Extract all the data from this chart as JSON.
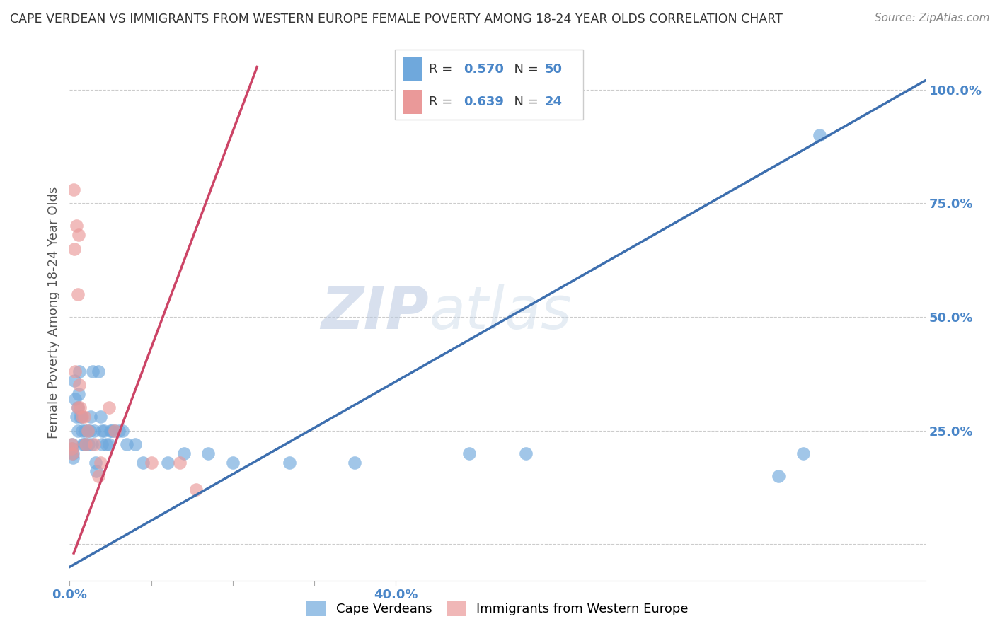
{
  "title": "CAPE VERDEAN VS IMMIGRANTS FROM WESTERN EUROPE FEMALE POVERTY AMONG 18-24 YEAR OLDS CORRELATION CHART",
  "source": "Source: ZipAtlas.com",
  "ylabel": "Female Poverty Among 18-24 Year Olds",
  "xlim": [
    0.0,
    1.05
  ],
  "ylim": [
    -0.08,
    1.1
  ],
  "yticks": [
    0.0,
    0.25,
    0.5,
    0.75,
    1.0
  ],
  "ytick_labels": [
    "",
    "25.0%",
    "50.0%",
    "75.0%",
    "100.0%"
  ],
  "xticks": [
    0.0,
    0.1,
    0.2,
    0.3,
    0.4
  ],
  "xtick_labels": [
    "0.0%",
    "",
    "",
    "",
    "40.0%"
  ],
  "watermark_part1": "ZIP",
  "watermark_part2": "atlas",
  "blue_color": "#6fa8dc",
  "pink_color": "#ea9999",
  "blue_line_color": "#3d6faf",
  "pink_line_color": "#cc4466",
  "blue_line": [
    [
      0.0,
      -0.05
    ],
    [
      1.05,
      1.02
    ]
  ],
  "pink_line": [
    [
      0.005,
      -0.02
    ],
    [
      0.23,
      1.05
    ]
  ],
  "blue_scatter": [
    [
      0.003,
      0.22
    ],
    [
      0.003,
      0.21
    ],
    [
      0.004,
      0.2
    ],
    [
      0.004,
      0.19
    ],
    [
      0.006,
      0.36
    ],
    [
      0.007,
      0.32
    ],
    [
      0.008,
      0.28
    ],
    [
      0.01,
      0.3
    ],
    [
      0.01,
      0.25
    ],
    [
      0.011,
      0.33
    ],
    [
      0.012,
      0.38
    ],
    [
      0.013,
      0.28
    ],
    [
      0.014,
      0.28
    ],
    [
      0.015,
      0.25
    ],
    [
      0.016,
      0.22
    ],
    [
      0.018,
      0.22
    ],
    [
      0.019,
      0.25
    ],
    [
      0.02,
      0.22
    ],
    [
      0.022,
      0.25
    ],
    [
      0.023,
      0.22
    ],
    [
      0.025,
      0.25
    ],
    [
      0.026,
      0.28
    ],
    [
      0.027,
      0.22
    ],
    [
      0.028,
      0.38
    ],
    [
      0.03,
      0.25
    ],
    [
      0.032,
      0.18
    ],
    [
      0.033,
      0.16
    ],
    [
      0.035,
      0.38
    ],
    [
      0.038,
      0.28
    ],
    [
      0.04,
      0.25
    ],
    [
      0.04,
      0.22
    ],
    [
      0.042,
      0.25
    ],
    [
      0.045,
      0.22
    ],
    [
      0.048,
      0.22
    ],
    [
      0.05,
      0.25
    ],
    [
      0.052,
      0.25
    ],
    [
      0.055,
      0.25
    ],
    [
      0.06,
      0.25
    ],
    [
      0.065,
      0.25
    ],
    [
      0.07,
      0.22
    ],
    [
      0.08,
      0.22
    ],
    [
      0.09,
      0.18
    ],
    [
      0.12,
      0.18
    ],
    [
      0.14,
      0.2
    ],
    [
      0.17,
      0.2
    ],
    [
      0.2,
      0.18
    ],
    [
      0.27,
      0.18
    ],
    [
      0.35,
      0.18
    ],
    [
      0.49,
      0.2
    ],
    [
      0.56,
      0.2
    ],
    [
      0.87,
      0.15
    ],
    [
      0.9,
      0.2
    ],
    [
      0.92,
      0.9
    ]
  ],
  "pink_scatter": [
    [
      0.002,
      0.22
    ],
    [
      0.002,
      0.21
    ],
    [
      0.003,
      0.2
    ],
    [
      0.005,
      0.78
    ],
    [
      0.006,
      0.65
    ],
    [
      0.007,
      0.38
    ],
    [
      0.008,
      0.7
    ],
    [
      0.01,
      0.55
    ],
    [
      0.01,
      0.3
    ],
    [
      0.011,
      0.68
    ],
    [
      0.012,
      0.35
    ],
    [
      0.013,
      0.3
    ],
    [
      0.015,
      0.28
    ],
    [
      0.018,
      0.28
    ],
    [
      0.02,
      0.22
    ],
    [
      0.022,
      0.25
    ],
    [
      0.03,
      0.22
    ],
    [
      0.035,
      0.15
    ],
    [
      0.038,
      0.18
    ],
    [
      0.048,
      0.3
    ],
    [
      0.055,
      0.25
    ],
    [
      0.1,
      0.18
    ],
    [
      0.135,
      0.18
    ],
    [
      0.155,
      0.12
    ]
  ],
  "background_color": "#ffffff",
  "grid_color": "#cccccc"
}
